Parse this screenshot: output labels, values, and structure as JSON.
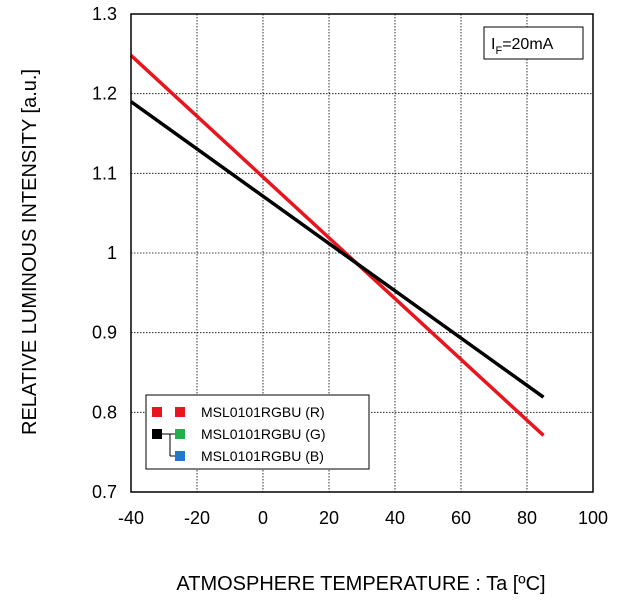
{
  "chart_data": {
    "type": "line",
    "title": "",
    "xlabel": "ATMOSPHERE TEMPERATURE : Ta [ºC]",
    "ylabel": "RELATIVE LUMINOUS INTENSITY [a.u.]",
    "xlim": [
      -40,
      100
    ],
    "ylim": [
      0.7,
      1.3
    ],
    "x_ticks": [
      -40,
      -20,
      0,
      20,
      40,
      60,
      80,
      100
    ],
    "x_tick_labels": [
      "-40",
      "-20",
      "0",
      "20",
      "40",
      "60",
      "80",
      "100"
    ],
    "y_ticks": [
      0.7,
      0.8,
      0.9,
      1.0,
      1.1,
      1.2,
      1.3
    ],
    "y_tick_labels": [
      "0.7",
      "0.8",
      "0.9",
      "1",
      "1.1",
      "1.2",
      "1.3"
    ],
    "grid": true,
    "legend_position": "bottom-left",
    "condition_label": {
      "prefix": "I",
      "subscript": "F",
      "suffix": "=20mA"
    },
    "series": [
      {
        "name": "MSL0101RGBU (R)",
        "color": "#e8141e",
        "x": [
          -40,
          85
        ],
        "y": [
          1.248,
          0.771
        ]
      },
      {
        "name": "MSL0101RGBU (G)",
        "color": "#000000",
        "x": [
          -40,
          85
        ],
        "y": [
          1.19,
          0.819
        ]
      }
    ],
    "legend": [
      {
        "label": "MSL0101RGBU (R)",
        "markers": [
          "#e8141e",
          "#e8141e"
        ],
        "bracket": ""
      },
      {
        "label": "MSL0101RGBU (G)",
        "markers": [
          "#000000",
          "#22b14c"
        ],
        "bracket": "top"
      },
      {
        "label": "MSL0101RGBU (B)",
        "markers": [
          "",
          "#1f77d0"
        ],
        "bracket": "bottom"
      }
    ]
  }
}
